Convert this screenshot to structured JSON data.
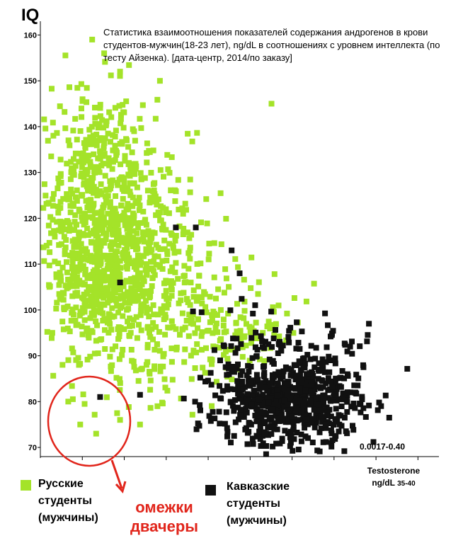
{
  "chart_data": {
    "type": "scatter",
    "title": "Статистика взаимоотношения показателей содержания андрогенов в крови студентов-мужчин(18-23 лет), ng/dL в соотношениях с уровнем интеллекта (по тесту Айзенка). [дата-центр, 2014/по заказу]",
    "ylabel": "IQ",
    "xlabel": "Testosterone",
    "xunit_label": "ng/dL",
    "xunit_suffix": "35-40",
    "x_range_note": "0.0017-0.40",
    "ylim": [
      68,
      163
    ],
    "xlim": [
      0,
      10
    ],
    "yticks": [
      "160",
      "150",
      "140",
      "130",
      "120",
      "110",
      "100",
      "90",
      "80",
      "70"
    ],
    "ytick_values": [
      160,
      150,
      140,
      130,
      120,
      110,
      100,
      90,
      80,
      70
    ],
    "xticks_labeled": false,
    "series": [
      {
        "name": "Русские студенты (мужчины)",
        "color": "#a4e329",
        "clusters": [
          {
            "x": 1.6,
            "y": 118,
            "sx": 0.85,
            "sy": 10,
            "n": 680
          },
          {
            "x": 1.3,
            "y": 104,
            "sx": 0.55,
            "sy": 6,
            "n": 160
          },
          {
            "x": 2.6,
            "y": 108,
            "sx": 1.0,
            "sy": 9,
            "n": 260
          },
          {
            "x": 4.2,
            "y": 96,
            "sx": 1.1,
            "sy": 6,
            "n": 170
          },
          {
            "x": 1.5,
            "y": 138,
            "sx": 0.7,
            "sy": 7,
            "n": 110
          },
          {
            "x": 2.4,
            "y": 87,
            "sx": 1.2,
            "sy": 5,
            "n": 60
          }
        ],
        "sample_points": [
          {
            "x": 1.3,
            "y": 159
          },
          {
            "x": 1.6,
            "y": 156
          },
          {
            "x": 2.0,
            "y": 152
          },
          {
            "x": 3.0,
            "y": 150
          },
          {
            "x": 5.8,
            "y": 145
          },
          {
            "x": 0.7,
            "y": 80
          },
          {
            "x": 1.0,
            "y": 75
          },
          {
            "x": 1.4,
            "y": 73
          },
          {
            "x": 2.0,
            "y": 76
          },
          {
            "x": 2.5,
            "y": 75
          },
          {
            "x": 0.3,
            "y": 95
          }
        ]
      },
      {
        "name": "Кавказские студенты (мужчины)",
        "color": "#111111",
        "clusters": [
          {
            "x": 6.4,
            "y": 80,
            "sx": 0.9,
            "sy": 5,
            "n": 560
          },
          {
            "x": 5.9,
            "y": 90,
            "sx": 1.0,
            "sy": 5,
            "n": 110
          },
          {
            "x": 5.2,
            "y": 78,
            "sx": 0.8,
            "sy": 4,
            "n": 60
          }
        ],
        "sample_points": [
          {
            "x": 4.8,
            "y": 113
          },
          {
            "x": 3.9,
            "y": 118
          },
          {
            "x": 3.4,
            "y": 118
          },
          {
            "x": 5.0,
            "y": 108
          },
          {
            "x": 2.0,
            "y": 106
          },
          {
            "x": 7.9,
            "y": 82
          },
          {
            "x": 7.5,
            "y": 75
          },
          {
            "x": 1.5,
            "y": 81
          }
        ]
      }
    ],
    "grid": false,
    "legend": "bottom-left"
  },
  "header": {
    "ylabel": "IQ"
  },
  "legend": {
    "russian": {
      "line1": "Русские",
      "line2": "студенты",
      "line3": "(мужчины)",
      "color": "#a4e329"
    },
    "caucasian": {
      "line1": "Кавказские",
      "line2": "студенты",
      "line3": "(мужчины)",
      "color": "#111111"
    }
  },
  "annotation": {
    "line1": "омежки",
    "line2": "двачеры",
    "color": "#e1251b"
  }
}
